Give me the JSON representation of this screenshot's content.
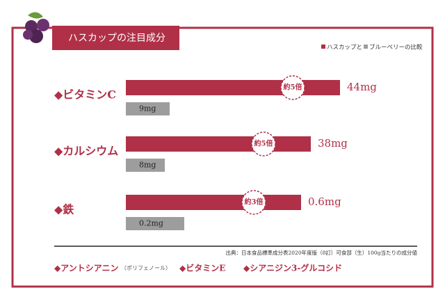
{
  "chart_data": {
    "type": "bar",
    "orientation": "horizontal",
    "title": "ハスカップの注目成分",
    "categories": [
      "◆ビタミンC",
      "◆カルシウム",
      "◆鉄"
    ],
    "xlims": [
      [
        0,
        60
      ],
      [
        0,
        60
      ],
      [
        0,
        1
      ]
    ],
    "series": [
      {
        "name": "ハスカップと",
        "color": "#b03048",
        "values": [
          44,
          38,
          0.6
        ],
        "value_labels": [
          "44mg",
          "38mg",
          "0.6mg"
        ]
      },
      {
        "name": "ブルーベリーの比較",
        "color": "#9d9d9d",
        "values": [
          9,
          8,
          0.2
        ],
        "value_labels": [
          "9mg",
          "8mg",
          "0.2mg"
        ]
      }
    ],
    "annotations": [
      "約5倍",
      "約5倍",
      "約3倍"
    ],
    "source": "出典：日本食品標準成分表2020年度版（8訂）可食部（生）100g当たりの成分値",
    "footer": [
      "◆アントシアニン",
      "（ポリフェノール）",
      "◆ビタミンE",
      "◆シアニジン3-グルコシド"
    ]
  }
}
